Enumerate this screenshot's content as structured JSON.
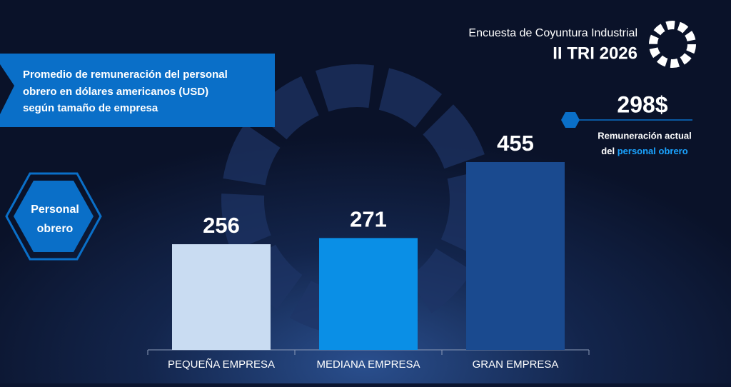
{
  "header": {
    "subtitle": "Encuesta de Coyuntura Industrial",
    "period": "II TRI 2026"
  },
  "badge": {
    "line1": "Personal",
    "line2": "obrero"
  },
  "kpi": {
    "text": "298$",
    "caption_line1": "Remuneración actual",
    "caption_prefix": "del",
    "caption_highlight": "personal obrero"
  },
  "chart_data": {
    "type": "bar",
    "title_lines": [
      "Promedio de remuneración del personal",
      "obrero en dólares americanos (USD)",
      "según tamaño de empresa"
    ],
    "categories": [
      "PEQUEÑA EMPRESA",
      "MEDIANA EMPRESA",
      "GRAN EMPRESA"
    ],
    "values": [
      256,
      271,
      455
    ],
    "colors": [
      "#c9dcf2",
      "#0a8fe6",
      "#1a4a8f"
    ]
  }
}
